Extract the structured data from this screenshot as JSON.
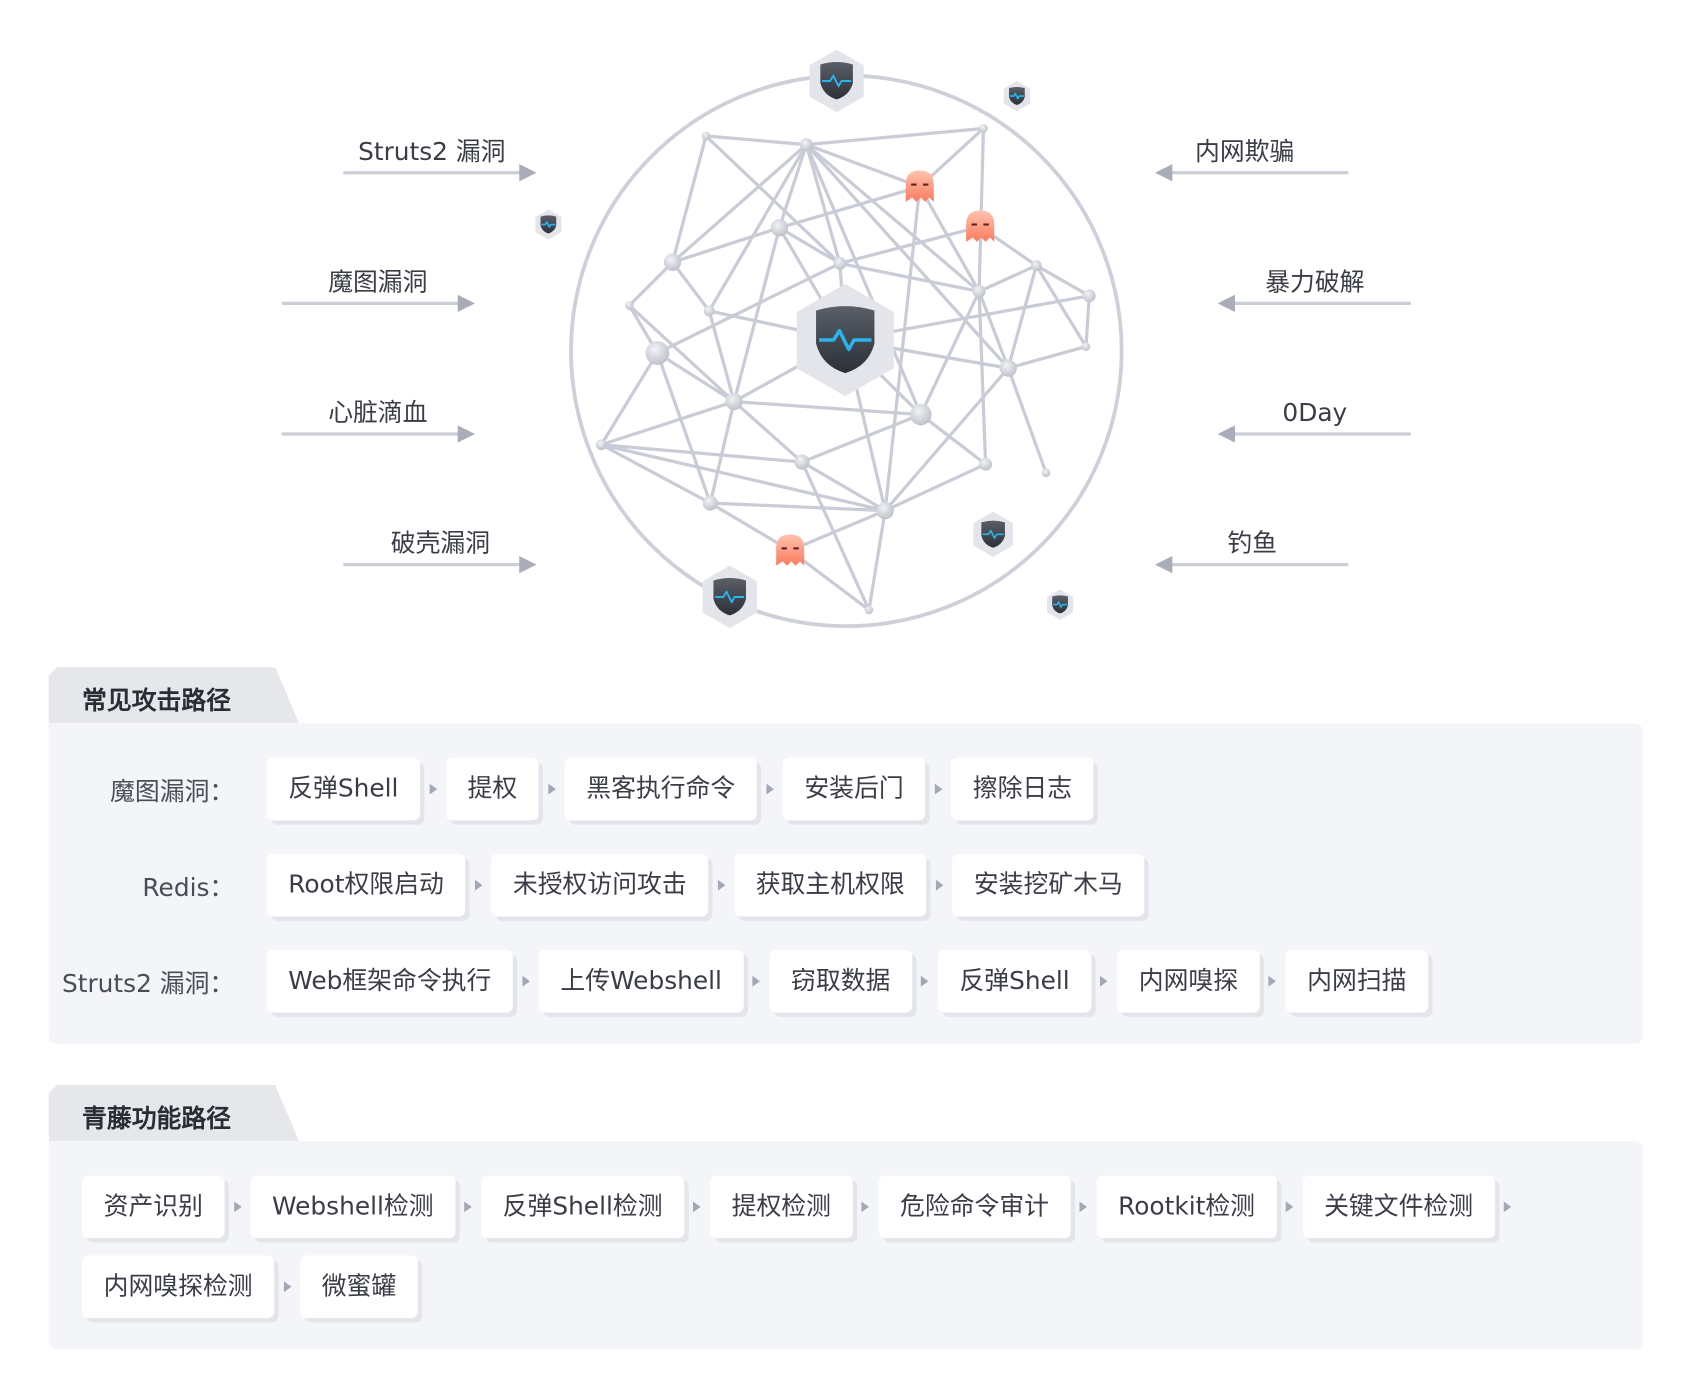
{
  "diagram": {
    "left_labels": [
      "Struts2 漏洞",
      "魔图漏洞",
      "心脏滴血",
      "破壳漏洞"
    ],
    "right_labels": [
      "内网欺骗",
      "暴力破解",
      "0Day",
      "钓鱼"
    ],
    "colors": {
      "line": "#c9ccd6",
      "node": "#d3d5dc",
      "shield": "#3a3f47",
      "pulse": "#2bb4ea",
      "ghost": "#fb8a6e",
      "arrow": "#a9adb8"
    },
    "icons": {
      "center": "shield-pulse-icon",
      "node": "hexagon-shield-icon",
      "threat": "ghost-icon"
    }
  },
  "attack": {
    "title": "常见攻击路径",
    "rows": [
      {
        "label": "魔图漏洞：",
        "steps": [
          "反弹Shell",
          "提权",
          "黑客执行命令",
          "安装后门",
          "擦除日志"
        ]
      },
      {
        "label": "Redis：",
        "steps": [
          "Root权限启动",
          "未授权访问攻击",
          "获取主机权限",
          "安装挖矿木马"
        ]
      },
      {
        "label": "Struts2 漏洞：",
        "steps": [
          "Web框架命令执行",
          "上传Webshell",
          "窃取数据",
          "反弹Shell",
          "内网嗅探",
          "内网扫描"
        ]
      }
    ]
  },
  "qingteng": {
    "title": "青藤功能路径",
    "steps": [
      "资产识别",
      "Webshell检测",
      "反弹Shell检测",
      "提权检测",
      "危险命令审计",
      "Rootkit检测",
      "关键文件检测",
      "内网嗅探检测",
      "微蜜罐"
    ]
  }
}
